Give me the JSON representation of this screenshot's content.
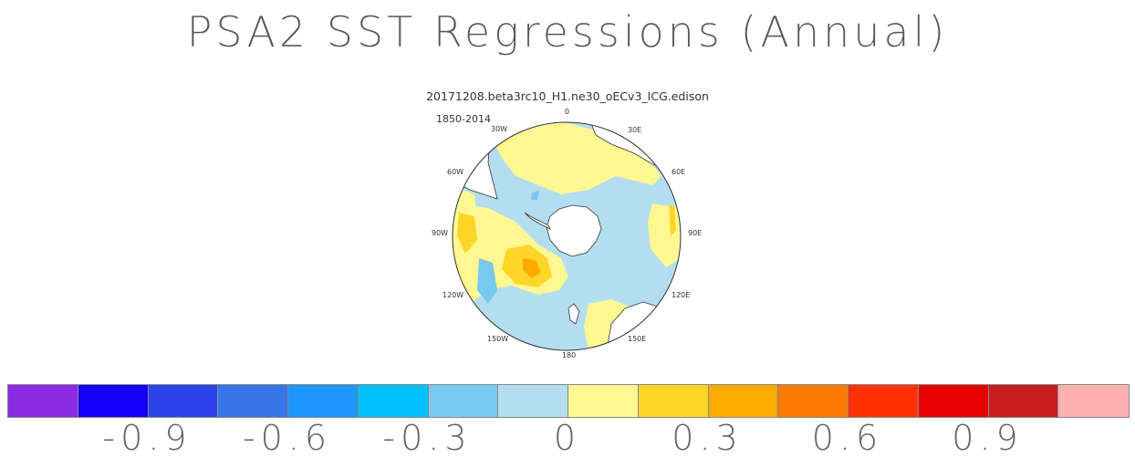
{
  "title": "PSA2 SST Regressions (Annual)",
  "subtitle": "20171208.beta3rc10_H1.ne30_oECv3_ICG.edison",
  "period": "1850-2014",
  "longitude_labels": {
    "lon_0": "0",
    "lon_30e": "30E",
    "lon_60e": "60E",
    "lon_90e": "90E",
    "lon_120e": "120E",
    "lon_150e": "150E",
    "lon_180": "180",
    "lon_150w": "150W",
    "lon_120w": "120W",
    "lon_90w": "90W",
    "lon_60w": "60W",
    "lon_30w": "30W"
  },
  "colorbar": {
    "colors": [
      "#8a2be2",
      "#1400ff",
      "#2c44ea",
      "#3575e8",
      "#1e96ff",
      "#00c1ff",
      "#78c8f0",
      "#b3def0",
      "#fff791",
      "#ffd628",
      "#ffaa00",
      "#ff7a00",
      "#ff3200",
      "#e60000",
      "#c81e1e",
      "#ffb1b1"
    ],
    "tick_labels": [
      "-0.9",
      "-0.6",
      "-0.3",
      "0",
      "0.3",
      "0.6",
      "0.9"
    ]
  },
  "map_colors": {
    "ocean_base": "#b3def0",
    "neg_medium": "#78c8f0",
    "pos_light": "#fff791",
    "pos_medium": "#ffd628",
    "pos_strong": "#ffaa00",
    "land": "#ffffff"
  }
}
